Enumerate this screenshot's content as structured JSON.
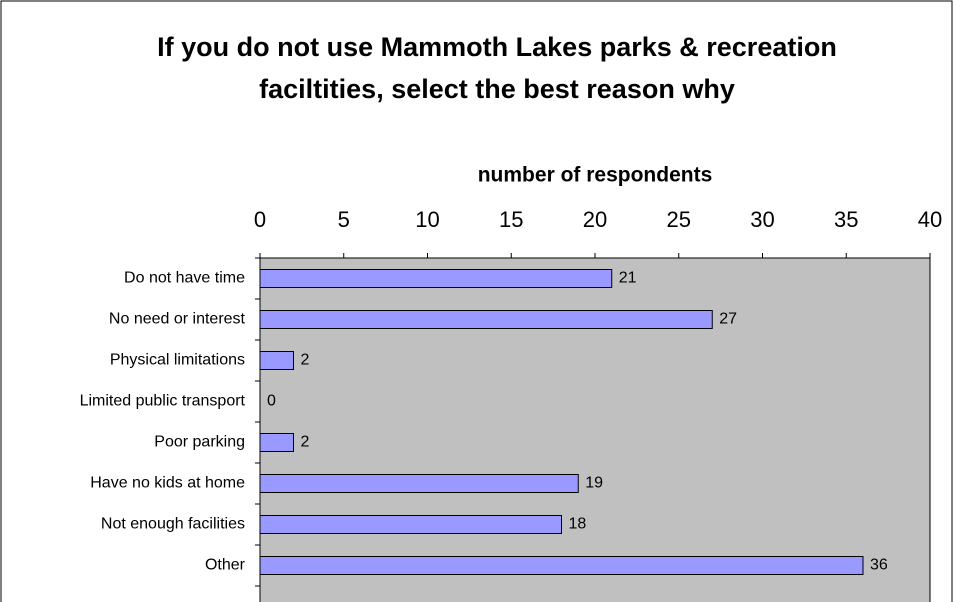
{
  "chart_data": {
    "type": "bar",
    "orientation": "horizontal",
    "title": "If you do not use Mammoth Lakes parks & recreation faciltities, select the best reason why",
    "x_label": "number of respondents",
    "categories": [
      "Do not have time",
      "No need or interest",
      "Physical limitations",
      "Limited public transport",
      "Poor parking",
      "Have no kids at home",
      "Not enough facilities",
      "Other"
    ],
    "values": [
      21,
      27,
      2,
      0,
      2,
      19,
      18,
      36
    ],
    "color": "#9999ff",
    "xlim": [
      0,
      40
    ],
    "xticks": [
      0,
      5,
      10,
      15,
      20,
      25,
      30,
      35,
      40
    ],
    "plot_background": "#c0c0c0"
  }
}
